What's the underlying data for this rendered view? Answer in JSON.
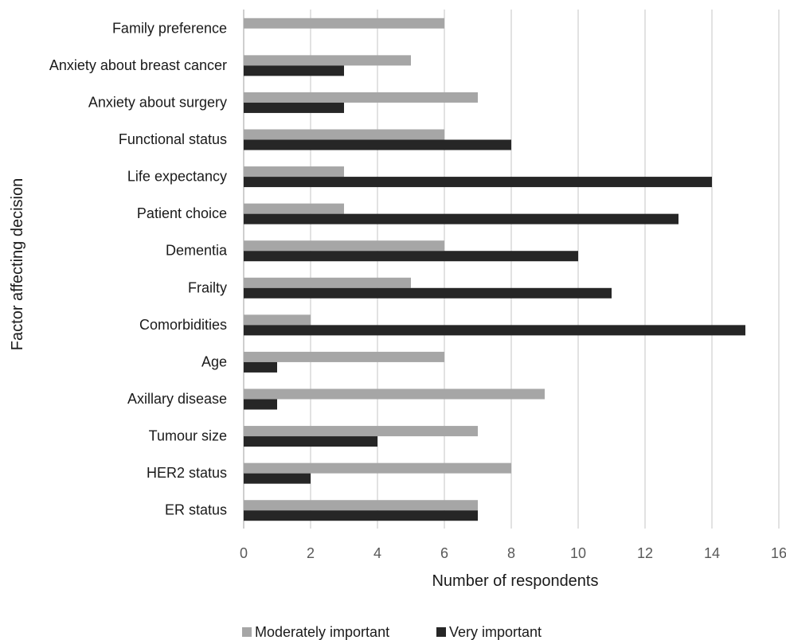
{
  "chart_data": {
    "type": "bar",
    "orientation": "horizontal",
    "categories": [
      "Family preference",
      "Anxiety about breast cancer",
      "Anxiety about surgery",
      "Functional status",
      "Life expectancy",
      "Patient choice",
      "Dementia",
      "Frailty",
      "Comorbidities",
      "Age",
      "Axillary disease",
      "Tumour size",
      "HER2 status",
      "ER status"
    ],
    "series": [
      {
        "name": "Moderately important",
        "color": "#a6a6a6",
        "values": [
          6,
          5,
          7,
          6,
          3,
          3,
          6,
          5,
          2,
          6,
          9,
          7,
          8,
          7
        ]
      },
      {
        "name": "Very important",
        "color": "#262626",
        "values": [
          0,
          3,
          3,
          8,
          14,
          13,
          10,
          11,
          15,
          1,
          1,
          4,
          2,
          7
        ]
      }
    ],
    "xlabel": "Number of respondents",
    "ylabel": "Factor affecting decision",
    "xlim": [
      0,
      16
    ],
    "xticks": [
      "0",
      "2",
      "4",
      "6",
      "8",
      "10",
      "12",
      "14",
      "16"
    ],
    "grid": "vertical",
    "legend_position": "bottom"
  }
}
